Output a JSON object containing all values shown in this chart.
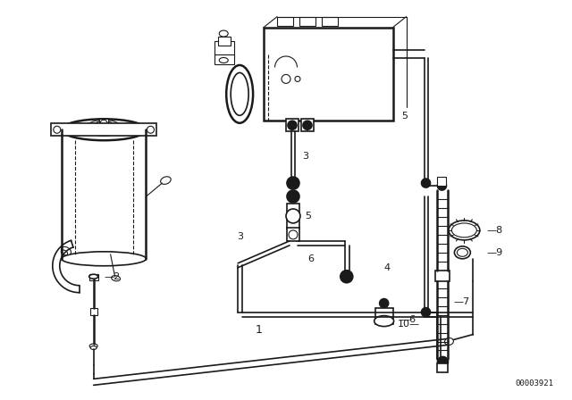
{
  "bg_color": "#ffffff",
  "line_color": "#1a1a1a",
  "figsize": [
    6.4,
    4.48
  ],
  "dpi": 100,
  "diagram_id": "00003921",
  "lw_heavy": 1.8,
  "lw_med": 1.2,
  "lw_light": 0.8
}
